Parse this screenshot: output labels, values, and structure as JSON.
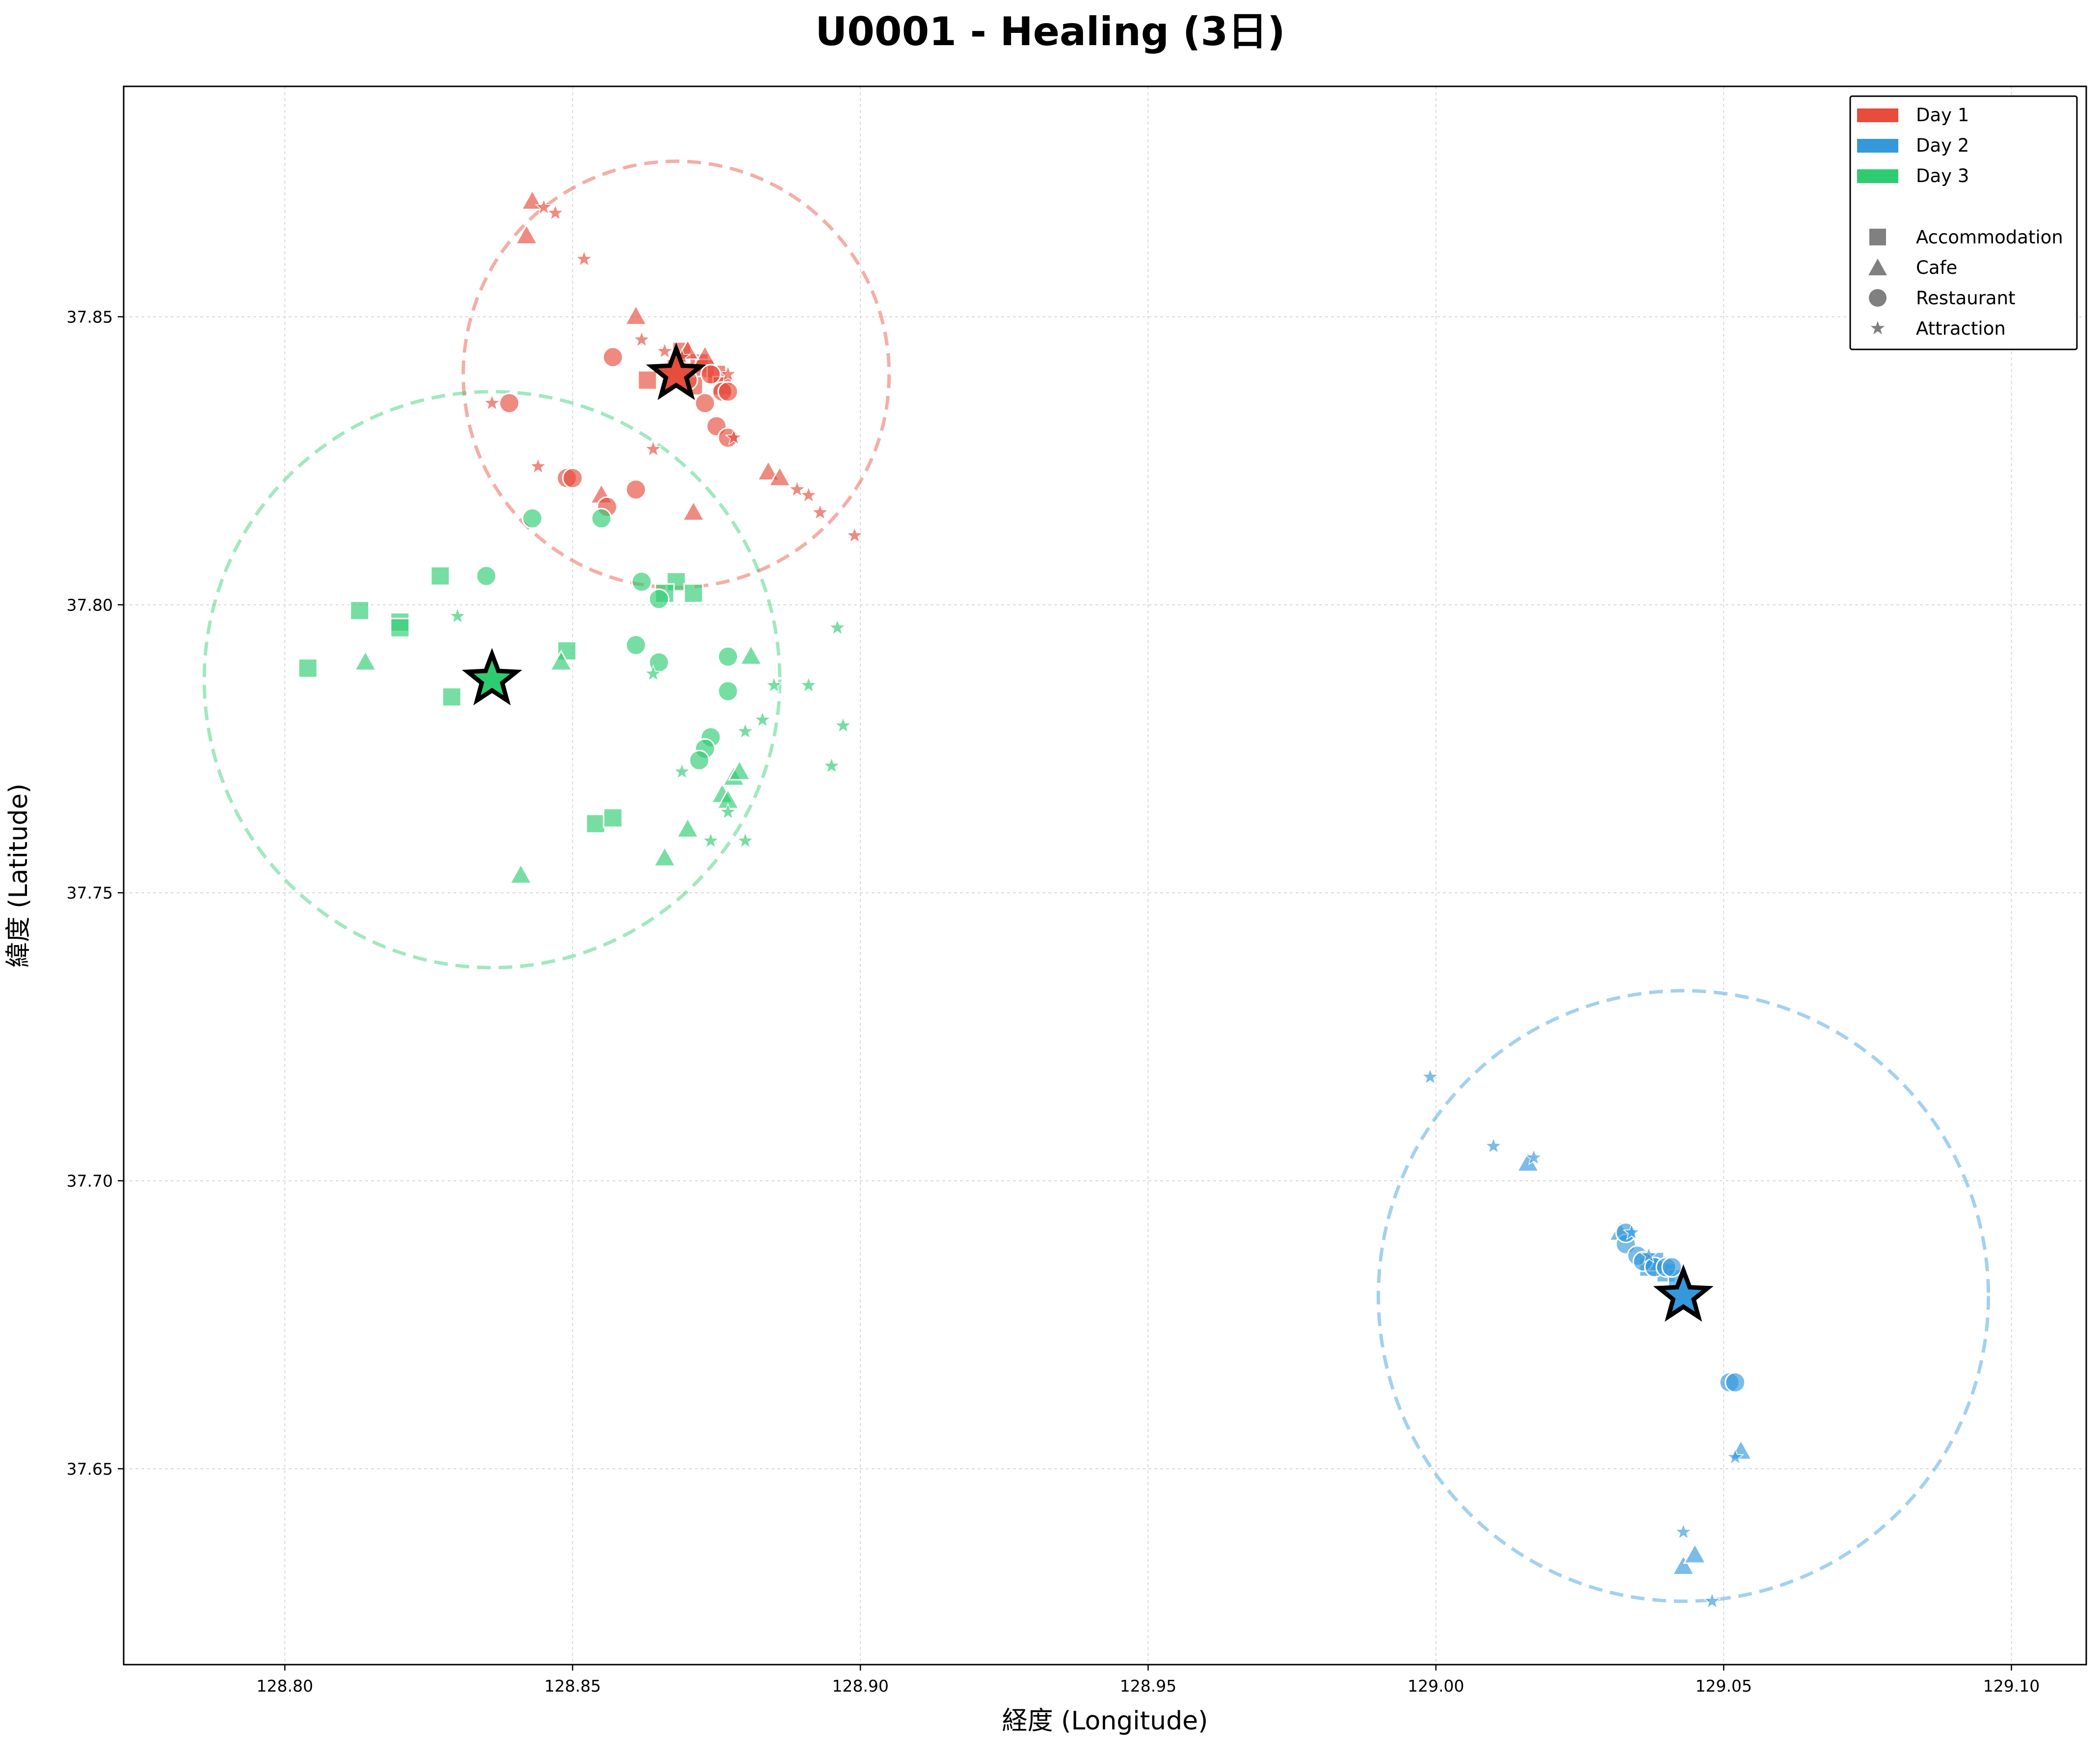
{
  "chart_data": {
    "type": "scatter",
    "title": "U0001 - Healing (3日)",
    "xlabel": "経度 (Longitude)",
    "ylabel": "緯度 (Latitude)",
    "xlim": [
      128.772,
      129.113
    ],
    "ylim": [
      37.616,
      37.89
    ],
    "xticks": [
      "128.80",
      "128.85",
      "128.90",
      "128.95",
      "129.00",
      "129.05",
      "129.10"
    ],
    "yticks": [
      "37.65",
      "37.70",
      "37.75",
      "37.80",
      "37.85"
    ],
    "grid": true,
    "legend_position": "top-right",
    "legend_days": [
      {
        "label": "Day 1",
        "color": "#e74c3c"
      },
      {
        "label": "Day 2",
        "color": "#3498db"
      },
      {
        "label": "Day 3",
        "color": "#2ecc71"
      }
    ],
    "legend_types": [
      {
        "label": "Accommodation",
        "marker": "square"
      },
      {
        "label": "Cafe",
        "marker": "triangle"
      },
      {
        "label": "Restaurant",
        "marker": "circle"
      },
      {
        "label": "Attraction",
        "marker": "star"
      }
    ],
    "series": [
      {
        "name": "Day 1",
        "color": "#e74c3c",
        "center": [
          128.868,
          37.84
        ],
        "radius_deg": 0.037,
        "accommodation": [
          [
            128.869,
            37.844
          ],
          [
            128.872,
            37.842
          ],
          [
            128.873,
            37.841
          ],
          [
            128.875,
            37.84
          ],
          [
            128.871,
            37.838
          ],
          [
            128.863,
            37.839
          ],
          [
            128.868,
            37.841
          ],
          [
            128.876,
            37.838
          ]
        ],
        "cafe": [
          [
            128.843,
            37.87
          ],
          [
            128.842,
            37.864
          ],
          [
            128.861,
            37.85
          ],
          [
            128.873,
            37.843
          ],
          [
            128.871,
            37.816
          ],
          [
            128.855,
            37.819
          ],
          [
            128.884,
            37.823
          ],
          [
            128.886,
            37.822
          ],
          [
            128.87,
            37.844
          ]
        ],
        "restaurant": [
          [
            128.857,
            37.843
          ],
          [
            128.839,
            37.835
          ],
          [
            128.849,
            37.822
          ],
          [
            128.85,
            37.822
          ],
          [
            128.861,
            37.82
          ],
          [
            128.856,
            37.817
          ],
          [
            128.873,
            37.835
          ],
          [
            128.875,
            37.831
          ],
          [
            128.877,
            37.829
          ],
          [
            128.876,
            37.837
          ],
          [
            128.877,
            37.837
          ],
          [
            128.874,
            37.84
          ],
          [
            128.87,
            37.839
          ]
        ],
        "attraction": [
          [
            128.845,
            37.869
          ],
          [
            128.847,
            37.868
          ],
          [
            128.852,
            37.86
          ],
          [
            128.862,
            37.846
          ],
          [
            128.866,
            37.844
          ],
          [
            128.869,
            37.843
          ],
          [
            128.836,
            37.835
          ],
          [
            128.844,
            37.824
          ],
          [
            128.864,
            37.827
          ],
          [
            128.878,
            37.829
          ],
          [
            128.889,
            37.82
          ],
          [
            128.891,
            37.819
          ],
          [
            128.893,
            37.816
          ],
          [
            128.899,
            37.812
          ],
          [
            128.877,
            37.84
          ]
        ]
      },
      {
        "name": "Day 2",
        "color": "#3498db",
        "center": [
          129.043,
          37.68
        ],
        "radius_deg": 0.053,
        "accommodation": [
          [
            129.037,
            37.685
          ],
          [
            129.04,
            37.684
          ],
          [
            129.042,
            37.683
          ],
          [
            129.038,
            37.686
          ]
        ],
        "cafe": [
          [
            129.016,
            37.703
          ],
          [
            129.043,
            37.633
          ],
          [
            129.045,
            37.635
          ],
          [
            129.053,
            37.653
          ],
          [
            129.032,
            37.691
          ]
        ],
        "restaurant": [
          [
            129.033,
            37.689
          ],
          [
            129.035,
            37.687
          ],
          [
            129.036,
            37.686
          ],
          [
            129.038,
            37.685
          ],
          [
            129.04,
            37.685
          ],
          [
            129.041,
            37.685
          ],
          [
            129.051,
            37.665
          ],
          [
            129.052,
            37.665
          ],
          [
            129.033,
            37.691
          ]
        ],
        "attraction": [
          [
            128.999,
            37.718
          ],
          [
            129.01,
            37.706
          ],
          [
            129.017,
            37.704
          ],
          [
            129.052,
            37.652
          ],
          [
            129.043,
            37.639
          ],
          [
            129.048,
            37.627
          ],
          [
            129.034,
            37.691
          ],
          [
            129.037,
            37.687
          ]
        ]
      },
      {
        "name": "Day 3",
        "color": "#2ecc71",
        "center": [
          128.836,
          37.787
        ],
        "radius_deg": 0.05,
        "accommodation": [
          [
            128.813,
            37.799
          ],
          [
            128.82,
            37.797
          ],
          [
            128.82,
            37.796
          ],
          [
            128.827,
            37.805
          ],
          [
            128.804,
            37.789
          ],
          [
            128.829,
            37.784
          ],
          [
            128.849,
            37.792
          ],
          [
            128.854,
            37.762
          ],
          [
            128.857,
            37.763
          ],
          [
            128.868,
            37.804
          ],
          [
            128.871,
            37.802
          ],
          [
            128.866,
            37.802
          ]
        ],
        "cafe": [
          [
            128.814,
            37.79
          ],
          [
            128.848,
            37.79
          ],
          [
            128.841,
            37.753
          ],
          [
            128.866,
            37.756
          ],
          [
            128.87,
            37.761
          ],
          [
            128.881,
            37.791
          ],
          [
            128.876,
            37.767
          ],
          [
            128.878,
            37.77
          ],
          [
            128.879,
            37.771
          ],
          [
            128.877,
            37.766
          ]
        ],
        "restaurant": [
          [
            128.843,
            37.815
          ],
          [
            128.855,
            37.815
          ],
          [
            128.835,
            37.805
          ],
          [
            128.862,
            37.804
          ],
          [
            128.865,
            37.801
          ],
          [
            128.861,
            37.793
          ],
          [
            128.865,
            37.79
          ],
          [
            128.877,
            37.791
          ],
          [
            128.877,
            37.785
          ],
          [
            128.874,
            37.777
          ],
          [
            128.873,
            37.775
          ],
          [
            128.872,
            37.773
          ]
        ],
        "attraction": [
          [
            128.83,
            37.798
          ],
          [
            128.864,
            37.788
          ],
          [
            128.885,
            37.786
          ],
          [
            128.891,
            37.786
          ],
          [
            128.896,
            37.796
          ],
          [
            128.897,
            37.779
          ],
          [
            128.895,
            37.772
          ],
          [
            128.883,
            37.78
          ],
          [
            128.88,
            37.778
          ],
          [
            128.869,
            37.771
          ],
          [
            128.874,
            37.759
          ],
          [
            128.88,
            37.759
          ],
          [
            128.877,
            37.764
          ]
        ]
      }
    ]
  }
}
